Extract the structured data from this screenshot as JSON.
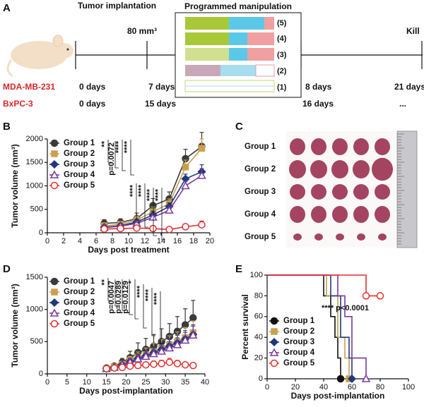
{
  "diagram": {
    "panel_label": "A",
    "title": "Programmed manipulation",
    "events": [
      "Tumor implantation",
      "80 mm³",
      "Kill"
    ],
    "arms": [
      "(5)",
      "(4)",
      "(3)",
      "(2)",
      "(1)"
    ],
    "cell_lines": [
      {
        "name": "MDA-MB-231",
        "days": [
          "0 days",
          "7 days",
          "8 days",
          "21 days"
        ]
      },
      {
        "name": "BxPC-3",
        "days": [
          "0 days",
          "15 days",
          "16 days",
          "..."
        ]
      }
    ]
  },
  "photo": {
    "panel_label": "C",
    "groups": [
      "Group 1",
      "Group 2",
      "Group 3",
      "Group 4",
      "Group 5"
    ]
  },
  "chart_data": [
    {
      "type": "line",
      "panel_label": "B",
      "x_label": "Days post treatment",
      "y_label": "Tumor volume (mm³)",
      "legend": "upper left",
      "x": [
        7,
        9,
        11,
        13,
        15,
        17,
        19
      ],
      "xlim": [
        0,
        20
      ],
      "xticks": [
        0,
        2,
        4,
        6,
        8,
        10,
        12,
        14,
        16,
        18,
        20
      ],
      "ylim": [
        0,
        2000
      ],
      "yticks": [
        0,
        500,
        1000,
        1500,
        2000
      ],
      "annotations": [
        "**",
        "p=0.0072",
        "****",
        "****",
        "****",
        "****",
        "****",
        "****"
      ],
      "series": [
        {
          "name": "Group 1",
          "color": "#3a3a3a",
          "marker": "circle",
          "values": [
            200,
            220,
            300,
            580,
            720,
            1580,
            1840
          ],
          "errors": [
            80,
            80,
            120,
            150,
            150,
            200,
            300
          ]
        },
        {
          "name": "Group 2",
          "color": "#c9a04e",
          "marker": "square",
          "values": [
            150,
            180,
            270,
            450,
            620,
            1400,
            1800
          ],
          "errors": [
            60,
            60,
            80,
            100,
            100,
            150,
            200
          ]
        },
        {
          "name": "Group 3",
          "color": "#1f3a7a",
          "marker": "diamond",
          "values": [
            120,
            150,
            230,
            380,
            560,
            1150,
            1300
          ],
          "errors": [
            50,
            50,
            60,
            80,
            80,
            100,
            150
          ]
        },
        {
          "name": "Group 4",
          "color": "#7a3aa0",
          "marker": "triangle",
          "values": [
            110,
            140,
            200,
            330,
            480,
            1000,
            1220
          ],
          "errors": [
            40,
            40,
            50,
            60,
            70,
            100,
            150
          ]
        },
        {
          "name": "Group 5",
          "color": "#e03030",
          "marker": "open-circle",
          "values": [
            80,
            90,
            100,
            90,
            70,
            130,
            170
          ],
          "errors": [
            30,
            30,
            40,
            30,
            20,
            60,
            80
          ]
        }
      ]
    },
    {
      "type": "line",
      "panel_label": "D",
      "x_label": "Days post-implantation",
      "y_label": "Tumor volume (mm³)",
      "legend": "upper left",
      "x": [
        15,
        17,
        19,
        21,
        23,
        25,
        27,
        29,
        31,
        33,
        35,
        37
      ],
      "xlim": [
        0,
        40
      ],
      "xticks": [
        0,
        5,
        10,
        15,
        20,
        25,
        30,
        35,
        40
      ],
      "ylim": [
        0,
        1500
      ],
      "yticks": [
        0,
        500,
        1000,
        1500
      ],
      "annotations": [
        "**",
        "p=0.0047",
        "p=0.0289",
        "p=0.0129",
        "*",
        "****",
        "****",
        "****"
      ],
      "series": [
        {
          "name": "Group 1",
          "color": "#3a3a3a",
          "marker": "circle",
          "values": [
            90,
            120,
            180,
            250,
            330,
            380,
            430,
            500,
            580,
            660,
            760,
            870
          ],
          "errors": [
            30,
            40,
            60,
            100,
            150,
            170,
            180,
            200,
            200,
            230,
            250,
            270
          ]
        },
        {
          "name": "Group 2",
          "color": "#c9a04e",
          "marker": "square",
          "values": [
            80,
            110,
            150,
            210,
            260,
            300,
            350,
            400,
            450,
            500,
            560,
            640
          ],
          "errors": [
            20,
            30,
            40,
            60,
            80,
            100,
            120,
            130,
            140,
            150,
            160,
            180
          ]
        },
        {
          "name": "Group 3",
          "color": "#1f3a7a",
          "marker": "diamond",
          "values": [
            80,
            100,
            140,
            190,
            240,
            280,
            330,
            380,
            430,
            480,
            540,
            610
          ],
          "errors": [
            20,
            30,
            40,
            50,
            60,
            80,
            90,
            100,
            110,
            120,
            130,
            150
          ]
        },
        {
          "name": "Group 4",
          "color": "#7a3aa0",
          "marker": "triangle",
          "values": [
            80,
            100,
            140,
            180,
            230,
            270,
            310,
            350,
            400,
            450,
            520,
            600
          ],
          "errors": [
            20,
            30,
            40,
            50,
            60,
            70,
            80,
            90,
            100,
            110,
            120,
            140
          ]
        },
        {
          "name": "Group 5",
          "color": "#e03030",
          "marker": "open-circle",
          "values": [
            80,
            90,
            100,
            120,
            130,
            140,
            150,
            160,
            180,
            160,
            140,
            130
          ],
          "errors": [
            20,
            20,
            30,
            30,
            40,
            40,
            50,
            50,
            60,
            50,
            40,
            40
          ]
        }
      ]
    },
    {
      "type": "step",
      "panel_label": "E",
      "x_label": "Days post-implantation",
      "y_label": "Percent survival",
      "legend": "lower left",
      "xlim": [
        0,
        100
      ],
      "xticks": [
        0,
        20,
        40,
        60,
        80,
        100
      ],
      "ylim": [
        0,
        100
      ],
      "yticks": [
        0,
        20,
        40,
        60,
        80,
        100
      ],
      "annotations": [
        "**** p<0.0001"
      ],
      "series": [
        {
          "name": "Group 1",
          "color": "#111111",
          "marker": "circle",
          "x": [
            0,
            40,
            40,
            45,
            45,
            48,
            48,
            50,
            50,
            52,
            52
          ],
          "values": [
            100,
            100,
            80,
            80,
            60,
            60,
            40,
            40,
            20,
            20,
            0
          ]
        },
        {
          "name": "Group 2",
          "color": "#c9a04e",
          "marker": "square",
          "x": [
            0,
            42,
            42,
            50,
            50,
            55,
            55,
            58,
            58
          ],
          "values": [
            100,
            100,
            80,
            80,
            40,
            40,
            20,
            20,
            0
          ]
        },
        {
          "name": "Group 3",
          "color": "#1f3a7a",
          "marker": "diamond",
          "x": [
            0,
            45,
            45,
            52,
            52,
            58,
            58,
            60,
            60
          ],
          "values": [
            100,
            100,
            80,
            80,
            40,
            40,
            20,
            20,
            0
          ]
        },
        {
          "name": "Group 4",
          "color": "#7a3aa0",
          "marker": "triangle",
          "x": [
            0,
            50,
            50,
            55,
            55,
            60,
            60,
            70,
            70
          ],
          "values": [
            100,
            100,
            80,
            80,
            60,
            60,
            20,
            20,
            0
          ]
        },
        {
          "name": "Group 5",
          "color": "#e03030",
          "marker": "open-circle",
          "x": [
            0,
            70,
            70,
            80
          ],
          "values": [
            100,
            100,
            80,
            80
          ]
        }
      ]
    }
  ]
}
